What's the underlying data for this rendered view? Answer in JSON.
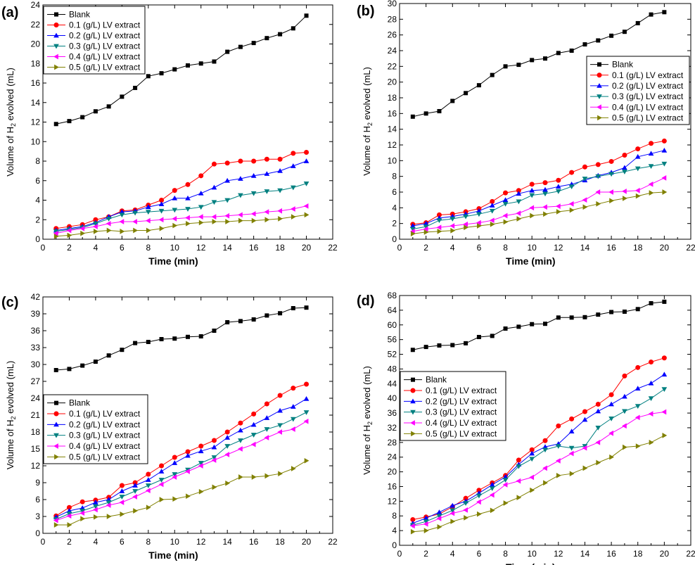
{
  "chart_data": [
    {
      "type": "line",
      "panel_label": "(a)",
      "xlabel": "Time (min)",
      "ylabel": "Volume of H2 evolved (mL)",
      "xlim": [
        0,
        22
      ],
      "ylim": [
        0,
        24
      ],
      "x_ticks": [
        0,
        2,
        4,
        6,
        8,
        10,
        12,
        14,
        16,
        18,
        20,
        22
      ],
      "y_ticks": [
        0,
        2,
        4,
        6,
        8,
        10,
        12,
        14,
        16,
        18,
        20,
        22,
        24
      ],
      "legend_position": "top-left",
      "x": [
        1,
        2,
        3,
        4,
        5,
        6,
        7,
        8,
        9,
        10,
        11,
        12,
        13,
        14,
        15,
        16,
        17,
        18,
        19,
        20
      ],
      "series": [
        {
          "name": "Blank",
          "color": "#000000",
          "marker": "square",
          "values": [
            11.8,
            12.1,
            12.5,
            13.1,
            13.6,
            14.6,
            15.5,
            16.7,
            17.0,
            17.4,
            17.8,
            18.0,
            18.2,
            19.2,
            19.7,
            20.1,
            20.6,
            21.0,
            21.6,
            22.9
          ]
        },
        {
          "name": "0.1 (g/L) LV extract",
          "color": "#ff0000",
          "marker": "circle",
          "values": [
            1.1,
            1.3,
            1.5,
            2.0,
            2.3,
            2.9,
            3.0,
            3.5,
            4.0,
            5.0,
            5.6,
            6.5,
            7.7,
            7.8,
            8.0,
            8.0,
            8.2,
            8.2,
            8.8,
            8.9
          ]
        },
        {
          "name": "0.2 (g/L) LV extract",
          "color": "#0000ff",
          "marker": "triangle-up",
          "values": [
            0.9,
            1.1,
            1.3,
            1.7,
            2.3,
            2.8,
            2.9,
            3.3,
            3.6,
            4.2,
            4.2,
            4.7,
            5.3,
            6.0,
            6.2,
            6.5,
            6.7,
            7.0,
            7.5,
            8.0
          ]
        },
        {
          "name": "0.3 (g/L) LV extract",
          "color": "#008080",
          "marker": "triangle-down",
          "values": [
            0.8,
            1.0,
            1.2,
            1.6,
            2.1,
            2.5,
            2.7,
            2.8,
            2.9,
            3.0,
            3.1,
            3.3,
            3.8,
            4.0,
            4.5,
            4.7,
            4.9,
            5.0,
            5.3,
            5.7
          ]
        },
        {
          "name": "0.4 (g/L) LV extract",
          "color": "#ff00ff",
          "marker": "triangle-left",
          "values": [
            0.6,
            0.9,
            1.1,
            1.3,
            1.6,
            1.8,
            1.8,
            1.9,
            2.0,
            2.1,
            2.2,
            2.3,
            2.3,
            2.4,
            2.5,
            2.6,
            2.8,
            2.9,
            3.1,
            3.4
          ]
        },
        {
          "name": "0.5 (g/L) LV extract",
          "color": "#808000",
          "marker": "triangle-right",
          "values": [
            0.3,
            0.4,
            0.6,
            0.8,
            0.9,
            0.8,
            0.9,
            0.9,
            1.1,
            1.4,
            1.6,
            1.7,
            1.8,
            1.8,
            1.9,
            1.9,
            2.0,
            2.1,
            2.3,
            2.5
          ]
        }
      ]
    },
    {
      "type": "line",
      "panel_label": "(b)",
      "xlabel": "Time (min)",
      "ylabel": "Volume of H2 evolved (mL)",
      "xlim": [
        0,
        22
      ],
      "ylim": [
        0,
        30
      ],
      "x_ticks": [
        0,
        2,
        4,
        6,
        8,
        10,
        12,
        14,
        16,
        18,
        20,
        22
      ],
      "y_ticks": [
        0,
        2,
        4,
        6,
        8,
        10,
        12,
        14,
        16,
        18,
        20,
        22,
        24,
        26,
        28,
        30
      ],
      "legend_position": "right",
      "x": [
        1,
        2,
        3,
        4,
        5,
        6,
        7,
        8,
        9,
        10,
        11,
        12,
        13,
        14,
        15,
        16,
        17,
        18,
        19,
        20
      ],
      "series": [
        {
          "name": "Blank",
          "color": "#000000",
          "marker": "square",
          "values": [
            15.6,
            16.0,
            16.3,
            17.6,
            18.6,
            19.6,
            20.9,
            22.0,
            22.2,
            22.8,
            23.0,
            23.7,
            24.0,
            24.8,
            25.3,
            25.9,
            26.4,
            27.5,
            28.6,
            28.9
          ]
        },
        {
          "name": "0.1 (g/L) LV extract",
          "color": "#ff0000",
          "marker": "circle",
          "values": [
            1.9,
            2.1,
            3.1,
            3.2,
            3.5,
            3.9,
            4.8,
            5.9,
            6.2,
            7.0,
            7.2,
            7.5,
            8.5,
            9.2,
            9.5,
            9.9,
            10.7,
            11.5,
            12.2,
            12.5
          ]
        },
        {
          "name": "0.2 (g/L) LV extract",
          "color": "#0000ff",
          "marker": "triangle-up",
          "values": [
            1.7,
            2.0,
            2.7,
            2.9,
            3.2,
            3.6,
            4.3,
            5.0,
            5.8,
            6.2,
            6.3,
            6.7,
            7.0,
            7.5,
            8.1,
            8.5,
            9.1,
            10.5,
            10.9,
            11.3
          ]
        },
        {
          "name": "0.3 (g/L) LV extract",
          "color": "#008080",
          "marker": "triangle-down",
          "values": [
            1.3,
            1.6,
            2.4,
            2.6,
            2.9,
            3.2,
            3.6,
            4.5,
            4.8,
            5.6,
            5.8,
            6.1,
            6.7,
            7.7,
            8.0,
            8.3,
            8.6,
            9.0,
            9.3,
            9.6
          ]
        },
        {
          "name": "0.4 (g/L) LV extract",
          "color": "#ff00ff",
          "marker": "triangle-left",
          "values": [
            1.0,
            1.3,
            1.5,
            1.7,
            1.9,
            2.1,
            2.4,
            3.0,
            3.3,
            4.0,
            4.1,
            4.2,
            4.5,
            5.0,
            6.0,
            6.0,
            6.1,
            6.2,
            7.0,
            7.8
          ]
        },
        {
          "name": "0.5 (g/L) LV extract",
          "color": "#808000",
          "marker": "triangle-right",
          "values": [
            0.7,
            0.9,
            1.0,
            1.1,
            1.5,
            1.7,
            1.9,
            2.2,
            2.6,
            3.0,
            3.2,
            3.5,
            3.7,
            4.1,
            4.5,
            4.9,
            5.2,
            5.5,
            5.9,
            6.0
          ]
        }
      ]
    },
    {
      "type": "line",
      "panel_label": "(c)",
      "xlabel": "Time (min)",
      "ylabel": "Volume of H2 evolved (mL)",
      "xlim": [
        0,
        22
      ],
      "ylim": [
        0,
        42
      ],
      "x_ticks": [
        0,
        2,
        4,
        6,
        8,
        10,
        12,
        14,
        16,
        18,
        20,
        22
      ],
      "y_ticks": [
        0,
        3,
        6,
        9,
        12,
        15,
        18,
        21,
        24,
        27,
        30,
        33,
        36,
        39,
        42
      ],
      "legend_position": "left",
      "x": [
        1,
        2,
        3,
        4,
        5,
        6,
        7,
        8,
        9,
        10,
        11,
        12,
        13,
        14,
        15,
        16,
        17,
        18,
        19,
        20
      ],
      "series": [
        {
          "name": "Blank",
          "color": "#000000",
          "marker": "square",
          "values": [
            29.0,
            29.2,
            29.8,
            30.5,
            31.6,
            32.6,
            33.8,
            34.0,
            34.5,
            34.6,
            34.9,
            35.0,
            36.0,
            37.5,
            37.7,
            38.0,
            38.7,
            39.1,
            40.0,
            40.1
          ]
        },
        {
          "name": "0.1 (g/L) LV extract",
          "color": "#ff0000",
          "marker": "circle",
          "values": [
            3.1,
            4.6,
            5.6,
            5.9,
            6.4,
            8.5,
            9.0,
            10.5,
            12.0,
            13.5,
            14.5,
            15.5,
            16.5,
            18.0,
            19.6,
            21.2,
            23.0,
            24.5,
            25.8,
            26.5
          ]
        },
        {
          "name": "0.2 (g/L) LV extract",
          "color": "#0000ff",
          "marker": "triangle-up",
          "values": [
            2.9,
            4.0,
            4.5,
            5.5,
            6.0,
            7.5,
            8.5,
            9.5,
            11.0,
            12.5,
            13.8,
            14.6,
            15.3,
            17.0,
            18.3,
            19.3,
            20.5,
            21.8,
            22.5,
            23.9
          ]
        },
        {
          "name": "0.3 (g/L) LV extract",
          "color": "#008080",
          "marker": "triangle-down",
          "values": [
            2.5,
            3.5,
            4.0,
            4.8,
            5.5,
            6.5,
            7.5,
            8.5,
            9.5,
            10.5,
            11.3,
            12.5,
            13.5,
            15.5,
            16.5,
            17.5,
            18.5,
            19.2,
            20.3,
            21.5
          ]
        },
        {
          "name": "0.4 (g/L) LV extract",
          "color": "#ff00ff",
          "marker": "triangle-left",
          "values": [
            2.3,
            3.1,
            3.6,
            4.2,
            5.0,
            5.5,
            6.5,
            7.6,
            8.7,
            10.0,
            11.0,
            12.0,
            13.0,
            14.0,
            15.0,
            15.8,
            17.0,
            18.0,
            18.5,
            19.9
          ]
        },
        {
          "name": "0.5 (g/L) LV extract",
          "color": "#808000",
          "marker": "triangle-right",
          "values": [
            1.5,
            1.5,
            2.6,
            2.9,
            3.0,
            3.4,
            4.0,
            4.6,
            6.0,
            6.1,
            6.6,
            7.4,
            8.2,
            8.9,
            10.0,
            10.0,
            10.2,
            10.6,
            11.5,
            12.9
          ]
        }
      ]
    },
    {
      "type": "line",
      "panel_label": "(d)",
      "xlabel": "Time (min)",
      "ylabel": "Volume of H2 evolved (mL)",
      "xlim": [
        0,
        22
      ],
      "ylim": [
        0,
        68
      ],
      "x_ticks": [
        0,
        2,
        4,
        6,
        8,
        10,
        12,
        14,
        16,
        18,
        20,
        22
      ],
      "y_ticks": [
        0,
        4,
        8,
        12,
        16,
        20,
        24,
        28,
        32,
        36,
        40,
        44,
        48,
        52,
        56,
        60,
        64,
        68
      ],
      "legend_position": "left",
      "x": [
        1,
        2,
        3,
        4,
        5,
        6,
        7,
        8,
        9,
        10,
        11,
        12,
        13,
        14,
        15,
        16,
        17,
        18,
        19,
        20
      ],
      "series": [
        {
          "name": "Blank",
          "color": "#000000",
          "marker": "square",
          "values": [
            53.2,
            54.0,
            54.4,
            54.5,
            55.0,
            56.7,
            57.0,
            59.0,
            59.5,
            60.2,
            60.3,
            62.0,
            62.0,
            62.1,
            62.8,
            63.5,
            63.6,
            64.3,
            65.9,
            66.3
          ]
        },
        {
          "name": "0.1 (g/L) LV extract",
          "color": "#ff0000",
          "marker": "circle",
          "values": [
            7.0,
            7.7,
            8.5,
            10.5,
            12.8,
            15.0,
            17.0,
            19.0,
            23.2,
            26.0,
            28.5,
            32.5,
            34.4,
            36.4,
            38.4,
            41.0,
            46.1,
            48.4,
            49.9,
            51.0
          ]
        },
        {
          "name": "0.2 (g/L) LV extract",
          "color": "#0000ff",
          "marker": "triangle-up",
          "values": [
            6.0,
            7.4,
            9.0,
            10.8,
            12.0,
            14.2,
            16.5,
            18.6,
            22.0,
            25.0,
            26.8,
            27.6,
            31.0,
            34.2,
            36.5,
            38.4,
            40.5,
            42.7,
            44.1,
            46.5
          ]
        },
        {
          "name": "0.3 (g/L) LV extract",
          "color": "#008080",
          "marker": "triangle-down",
          "values": [
            5.5,
            6.5,
            8.0,
            9.5,
            11.5,
            13.5,
            15.5,
            17.8,
            21.5,
            23.5,
            26.0,
            27.0,
            26.5,
            27.0,
            32.0,
            34.5,
            36.5,
            37.9,
            40.0,
            42.5
          ]
        },
        {
          "name": "0.4 (g/L) LV extract",
          "color": "#ff00ff",
          "marker": "triangle-left",
          "values": [
            5.3,
            5.8,
            7.3,
            8.7,
            9.6,
            11.8,
            13.7,
            16.5,
            17.5,
            18.5,
            21.0,
            23.0,
            25.0,
            26.5,
            28.0,
            30.5,
            32.5,
            34.8,
            35.8,
            36.3
          ]
        },
        {
          "name": "0.5 (g/L) LV extract",
          "color": "#808000",
          "marker": "triangle-right",
          "values": [
            3.7,
            4.0,
            5.0,
            6.5,
            7.5,
            8.5,
            9.5,
            11.5,
            13.0,
            15.0,
            17.0,
            19.0,
            19.5,
            21.0,
            22.5,
            24.0,
            26.7,
            27.0,
            28.0,
            29.9
          ]
        }
      ]
    }
  ]
}
